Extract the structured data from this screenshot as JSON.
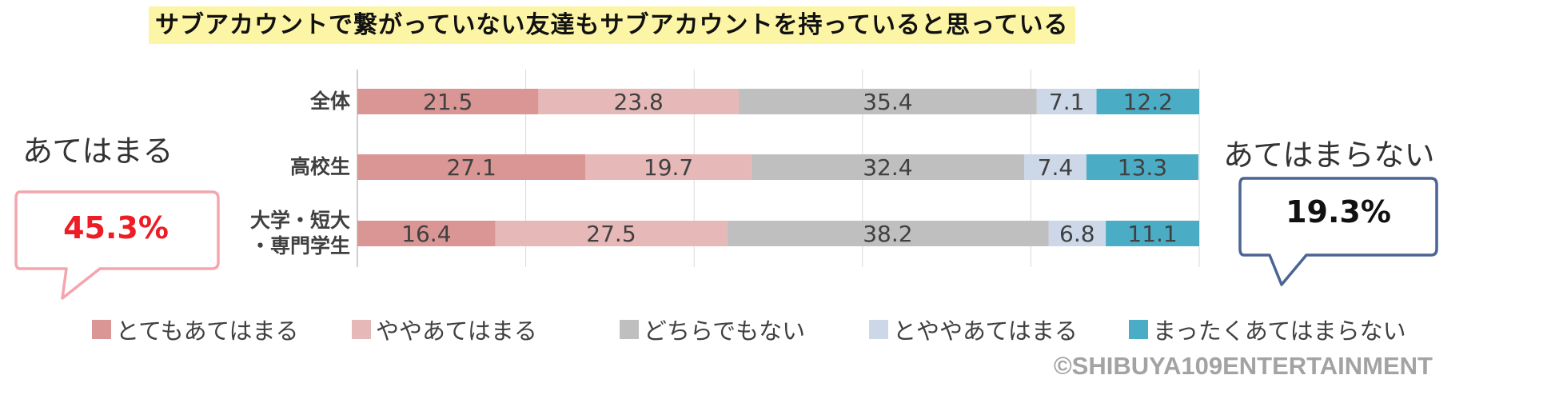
{
  "title": "サブアカウントで繋がっていない友達もサブアカウントを持っていると思っている",
  "left_group": {
    "label": "あてはまる",
    "value": "45.3%",
    "color": "#ee1c24",
    "border": "#f4a5ad"
  },
  "right_group": {
    "label": "あてはまらない",
    "value": "19.3%",
    "color": "#111111",
    "border": "#4a6592"
  },
  "copyright": "©SHIBUYA109ENTERTAINMENT",
  "chart_data": {
    "type": "bar",
    "orientation": "horizontal",
    "stacked": "100%",
    "categories": [
      "全体",
      "高校生",
      "大学・短大・専門学生"
    ],
    "category_lines": [
      [
        "全体"
      ],
      [
        "高校生"
      ],
      [
        "大学・短大",
        "・専門学生"
      ]
    ],
    "series": [
      {
        "name": "とてもあてはまる",
        "color": "#d99694",
        "values": [
          21.5,
          27.1,
          16.4
        ]
      },
      {
        "name": "ややあてはまる",
        "color": "#e6b9b8",
        "values": [
          23.8,
          19.7,
          27.5
        ]
      },
      {
        "name": "どちらでもない",
        "color": "#bfbfbf",
        "values": [
          35.4,
          32.4,
          38.2
        ]
      },
      {
        "name": "とややあてはまる",
        "color": "#ccd7e8",
        "values": [
          7.1,
          7.4,
          6.8
        ]
      },
      {
        "name": "まったくあてはまらない",
        "color": "#4bacc6",
        "values": [
          12.2,
          13.3,
          11.1
        ]
      }
    ],
    "xlim": [
      0,
      100
    ],
    "grid": true,
    "legend": "bottom",
    "data_labels": true
  }
}
